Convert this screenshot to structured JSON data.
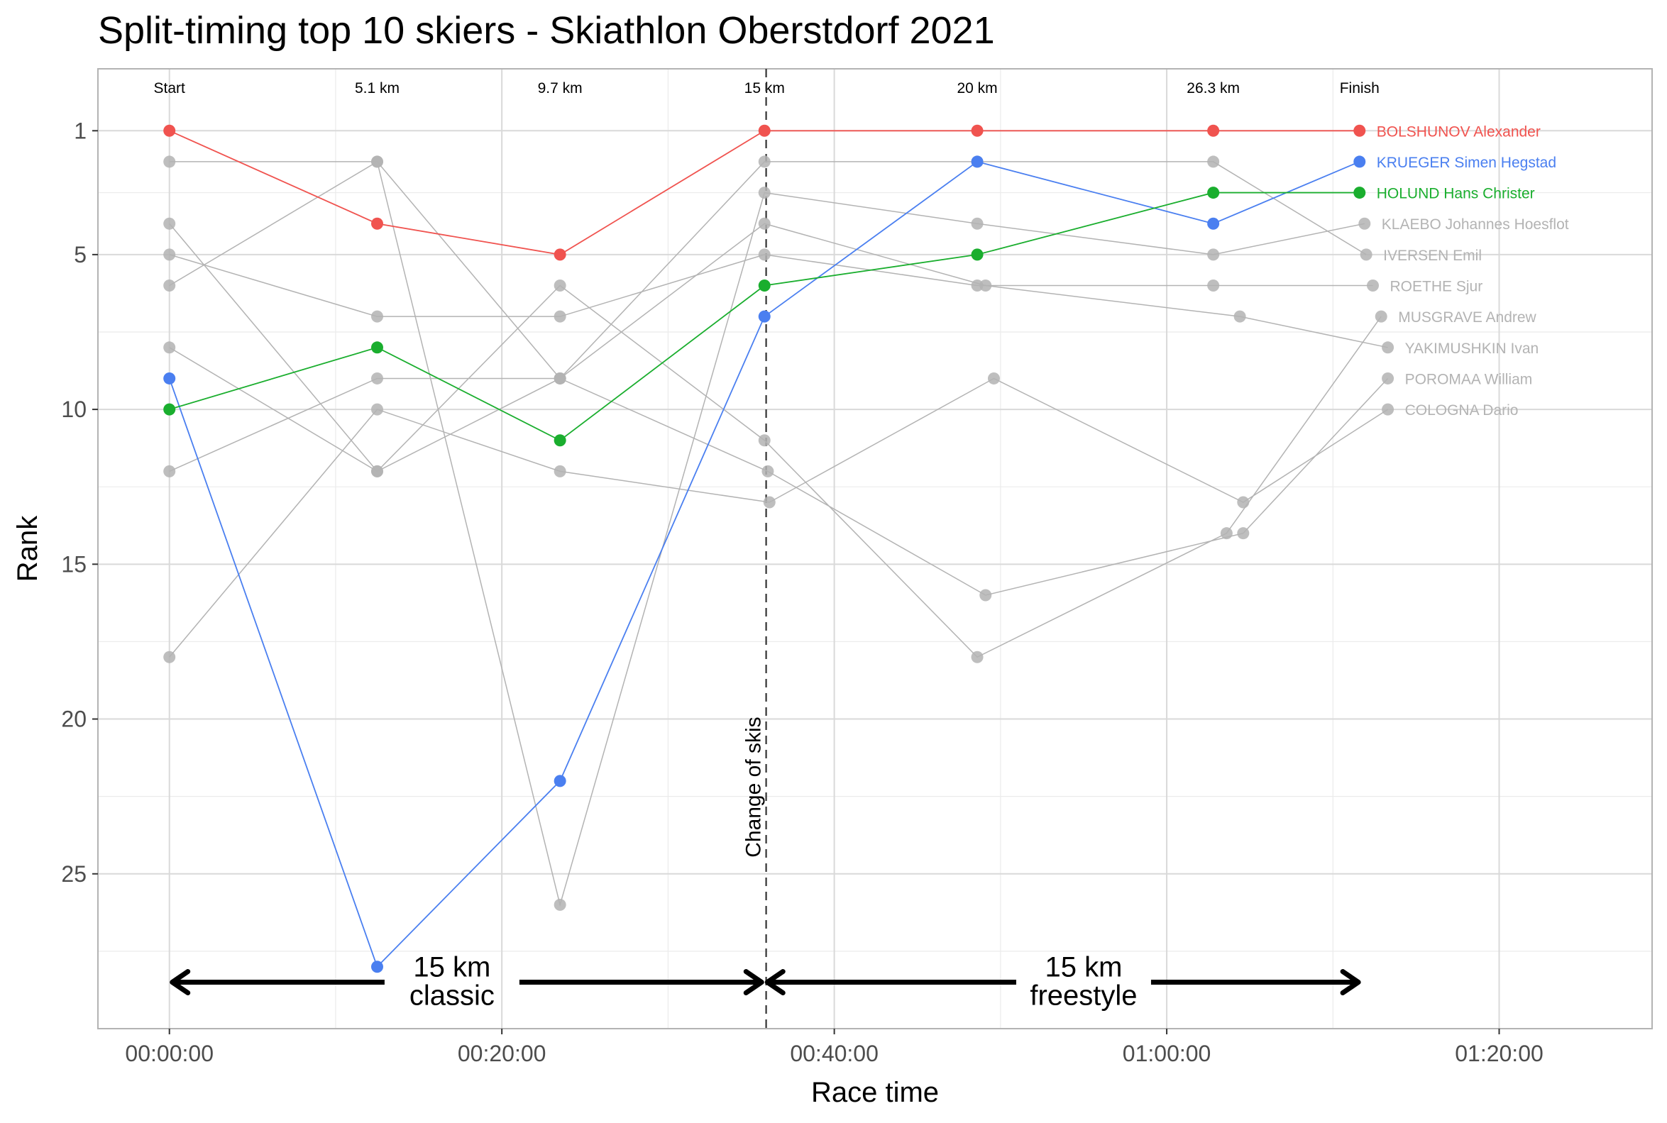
{
  "chart_data": {
    "type": "line",
    "title": "Split-timing top 10 skiers - Skiathlon Oberstdorf 2021",
    "xlabel": "Race time",
    "ylabel": "Rank",
    "x_unit": "minutes",
    "xlim": [
      -4.3,
      89.2
    ],
    "ylim": [
      30.0,
      -1.0
    ],
    "x_ticks": [
      0,
      20,
      40,
      60,
      80
    ],
    "x_tick_labels": [
      "00:00:00",
      "00:20:00",
      "00:40:00",
      "01:00:00",
      "01:20:00"
    ],
    "y_ticks": [
      1,
      5,
      10,
      15,
      20,
      25
    ],
    "y_tick_labels": [
      "1",
      "5",
      "10",
      "15",
      "20",
      "25"
    ],
    "grid": true,
    "split_labels": [
      {
        "text": "Start",
        "x": 0
      },
      {
        "text": "5.1 km",
        "x": 12.5
      },
      {
        "text": "9.7 km",
        "x": 23.5
      },
      {
        "text": "15 km",
        "x": 35.8
      },
      {
        "text": "20 km",
        "x": 48.6
      },
      {
        "text": "26.3 km",
        "x": 62.8
      },
      {
        "text": "Finish",
        "x": 71.6
      }
    ],
    "change_of_skis": {
      "x": 35.9,
      "label": "Change of skis"
    },
    "segments": [
      {
        "label": "15 km\nclassic",
        "from": 0,
        "to": 35.8,
        "label_x": 17.0
      },
      {
        "label": "15 km\nfreestyle",
        "from": 35.8,
        "to": 71.7,
        "label_x": 55.0
      }
    ],
    "series": [
      {
        "name": "BOLSHUNOV Alexander",
        "color": "#F0534F",
        "highlight": true,
        "x": [
          0,
          12.5,
          23.5,
          35.8,
          48.6,
          62.8,
          71.6
        ],
        "y": [
          1,
          4,
          5,
          1,
          1,
          1,
          1
        ]
      },
      {
        "name": "KRUEGER Simen Hegstad",
        "color": "#4A7FF0",
        "highlight": true,
        "x": [
          0,
          12.5,
          23.5,
          35.8,
          48.6,
          62.8,
          71.6
        ],
        "y": [
          9,
          28,
          22,
          7,
          2,
          4,
          2
        ]
      },
      {
        "name": "HOLUND Hans Christer",
        "color": "#1AAE2E",
        "highlight": true,
        "x": [
          0,
          12.5,
          23.5,
          35.8,
          48.6,
          62.8,
          71.6
        ],
        "y": [
          10,
          8,
          11,
          6,
          5,
          3,
          3
        ]
      },
      {
        "name": "KLAEBO Johannes Hoesflot",
        "color": "#B3B3B3",
        "highlight": false,
        "x": [
          0,
          12.5,
          23.5,
          35.8,
          48.6,
          62.8,
          71.9
        ],
        "y": [
          2,
          2,
          26,
          3,
          4,
          5,
          4
        ]
      },
      {
        "name": "IVERSEN Emil",
        "color": "#B3B3B3",
        "highlight": false,
        "x": [
          0,
          12.5,
          23.5,
          35.8,
          48.6,
          62.8,
          72.0
        ],
        "y": [
          6,
          2,
          9,
          2,
          2,
          2,
          5
        ]
      },
      {
        "name": "ROETHE Sjur",
        "color": "#B3B3B3",
        "highlight": false,
        "x": [
          0,
          12.5,
          23.5,
          35.8,
          48.6,
          62.8,
          72.4
        ],
        "y": [
          5,
          7,
          7,
          5,
          6,
          6,
          6
        ]
      },
      {
        "name": "MUSGRAVE Andrew",
        "color": "#B3B3B3",
        "highlight": false,
        "x": [
          0,
          12.5,
          23.5,
          35.8,
          48.6,
          63.6,
          72.9
        ],
        "y": [
          4,
          12,
          6,
          11,
          18,
          14,
          7
        ]
      },
      {
        "name": "YAKIMUSHKIN Ivan",
        "color": "#B3B3B3",
        "highlight": false,
        "x": [
          0,
          12.5,
          23.5,
          35.8,
          49.1,
          64.4,
          73.3
        ],
        "y": [
          8,
          12,
          9,
          4,
          6,
          7,
          8
        ]
      },
      {
        "name": "POROMAA William",
        "color": "#B3B3B3",
        "highlight": false,
        "x": [
          0,
          12.5,
          23.5,
          36.0,
          49.1,
          64.6,
          73.3
        ],
        "y": [
          12,
          9,
          9,
          12,
          16,
          14,
          9
        ]
      },
      {
        "name": "COLOGNA Dario",
        "color": "#B3B3B3",
        "highlight": false,
        "x": [
          0,
          12.5,
          23.5,
          36.1,
          49.6,
          64.6,
          73.3
        ],
        "y": [
          18,
          10,
          12,
          13,
          9,
          13,
          10
        ]
      }
    ]
  }
}
